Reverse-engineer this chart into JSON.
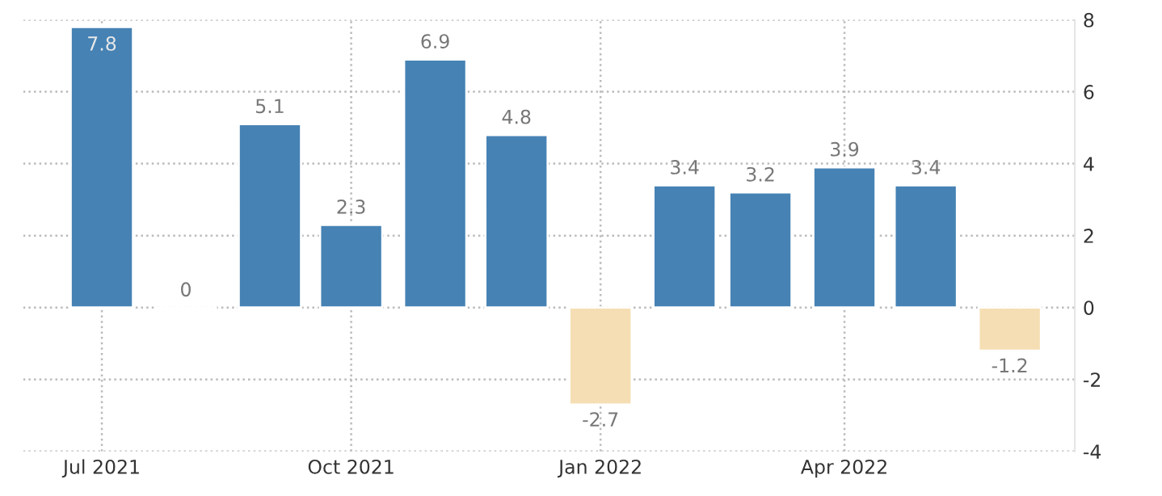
{
  "chart_data": {
    "type": "bar",
    "x": [
      "2021-07",
      "2021-08",
      "2021-09",
      "2021-10",
      "2021-11",
      "2021-12",
      "2022-01",
      "2022-02",
      "2022-03",
      "2022-04",
      "2022-05",
      "2022-06"
    ],
    "values": [
      7.8,
      0,
      5.1,
      2.3,
      6.9,
      4.8,
      -2.7,
      3.4,
      3.2,
      3.9,
      3.4,
      -1.2
    ],
    "colors": [
      "#4682b4",
      null,
      "#4682b4",
      "#4682b4",
      "#4682b4",
      "#4682b4",
      "#f5deb3",
      "#4682b4",
      "#4682b4",
      "#4682b4",
      "#4682b4",
      "#f5deb3"
    ],
    "data_labels": true,
    "xlim": [
      "2021-06-02",
      "2022-06-25"
    ],
    "xticks": [
      {
        "value": "2021-07",
        "label": "Jul 2021"
      },
      {
        "value": "2021-10",
        "label": "Oct 2021"
      },
      {
        "value": "2022-01",
        "label": "Jan 2022"
      },
      {
        "value": "2022-04",
        "label": "Apr 2022"
      }
    ],
    "ylim": [
      -4,
      8
    ],
    "yticks": [
      -4,
      -2,
      0,
      2,
      4,
      6,
      8
    ],
    "grid": true
  }
}
